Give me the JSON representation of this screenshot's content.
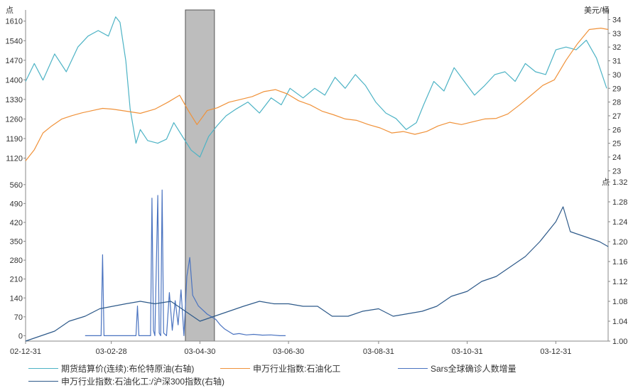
{
  "chart_data": [
    {
      "type": "line",
      "panel": "top",
      "left_unit": "点",
      "right_unit": "美元/桶",
      "left_ylim": [
        1050,
        1650
      ],
      "left_ticks": [
        "1610",
        "1540",
        "1470",
        "1400",
        "1330",
        "1260",
        "1190",
        "1120"
      ],
      "right_ylim": [
        22.5,
        34.7
      ],
      "right_ticks": [
        "34",
        "33",
        "32",
        "31",
        "30",
        "29",
        "28",
        "27",
        "26",
        "25",
        "24",
        "23"
      ],
      "xlim": [
        "2002-12-31",
        "2004-02-05"
      ],
      "highlight_range": [
        "2003-04-20",
        "2003-05-10"
      ],
      "series": [
        {
          "name": "期货结算价(连续):布伦特原油(右轴)",
          "color": "#4db3c5",
          "axis": "right",
          "x": [
            "2002-12-31",
            "2003-01-06",
            "2003-01-12",
            "2003-01-20",
            "2003-01-28",
            "2003-02-05",
            "2003-02-12",
            "2003-02-19",
            "2003-02-26",
            "2003-03-03",
            "2003-03-06",
            "2003-03-10",
            "2003-03-13",
            "2003-03-17",
            "2003-03-20",
            "2003-03-25",
            "2003-04-01",
            "2003-04-07",
            "2003-04-12",
            "2003-04-18",
            "2003-04-24",
            "2003-04-30",
            "2003-05-06",
            "2003-05-12",
            "2003-05-18",
            "2003-05-25",
            "2003-06-02",
            "2003-06-10",
            "2003-06-18",
            "2003-06-25",
            "2003-07-01",
            "2003-07-10",
            "2003-07-18",
            "2003-07-25",
            "2003-08-01",
            "2003-08-08",
            "2003-08-15",
            "2003-08-22",
            "2003-08-29",
            "2003-09-05",
            "2003-09-12",
            "2003-09-19",
            "2003-09-26",
            "2003-10-01",
            "2003-10-08",
            "2003-10-15",
            "2003-10-22",
            "2003-10-29",
            "2003-11-05",
            "2003-11-12",
            "2003-11-19",
            "2003-11-26",
            "2003-12-03",
            "2003-12-10",
            "2003-12-17",
            "2003-12-24",
            "2003-12-31",
            "2004-01-07",
            "2004-01-14",
            "2004-01-21",
            "2004-01-28",
            "2004-02-04"
          ],
          "values": [
            29.5,
            30.8,
            29.6,
            31.5,
            30.2,
            32.0,
            32.8,
            33.2,
            32.8,
            34.2,
            33.8,
            31.0,
            27.5,
            25.0,
            26.0,
            25.2,
            25.0,
            25.3,
            26.5,
            25.5,
            24.5,
            24.0,
            25.5,
            26.3,
            27.0,
            27.5,
            28.0,
            27.2,
            28.3,
            27.8,
            29.0,
            28.3,
            29.0,
            28.5,
            29.8,
            29.0,
            30.0,
            29.2,
            28.0,
            27.2,
            26.8,
            26.0,
            26.5,
            27.8,
            29.5,
            28.8,
            30.5,
            29.5,
            28.5,
            29.2,
            30.0,
            30.2,
            29.5,
            30.8,
            30.2,
            30.0,
            31.8,
            32.0,
            31.8,
            32.5,
            31.2,
            29.0
          ]
        },
        {
          "name": "申万行业指数:石油化工",
          "color": "#f0923a",
          "axis": "left",
          "x": [
            "2002-12-31",
            "2003-01-06",
            "2003-01-12",
            "2003-01-18",
            "2003-01-25",
            "2003-02-01",
            "2003-02-08",
            "2003-02-15",
            "2003-02-22",
            "2003-03-01",
            "2003-03-10",
            "2003-03-20",
            "2003-03-30",
            "2003-04-08",
            "2003-04-16",
            "2003-04-22",
            "2003-04-28",
            "2003-05-05",
            "2003-05-12",
            "2003-05-20",
            "2003-05-28",
            "2003-06-05",
            "2003-06-13",
            "2003-06-21",
            "2003-06-29",
            "2003-07-07",
            "2003-07-15",
            "2003-07-23",
            "2003-07-31",
            "2003-08-08",
            "2003-08-16",
            "2003-08-24",
            "2003-09-01",
            "2003-09-09",
            "2003-09-17",
            "2003-09-25",
            "2003-10-03",
            "2003-10-11",
            "2003-10-19",
            "2003-10-27",
            "2003-11-04",
            "2003-11-12",
            "2003-11-20",
            "2003-11-28",
            "2003-12-06",
            "2003-12-14",
            "2003-12-22",
            "2003-12-30",
            "2004-01-07",
            "2004-01-15",
            "2004-01-23",
            "2004-01-31",
            "2004-02-05"
          ],
          "values": [
            1110,
            1150,
            1210,
            1235,
            1260,
            1272,
            1282,
            1290,
            1298,
            1295,
            1288,
            1280,
            1295,
            1320,
            1345,
            1290,
            1240,
            1290,
            1300,
            1320,
            1330,
            1340,
            1358,
            1365,
            1350,
            1325,
            1310,
            1288,
            1275,
            1260,
            1255,
            1240,
            1228,
            1210,
            1215,
            1205,
            1215,
            1235,
            1248,
            1240,
            1250,
            1260,
            1262,
            1278,
            1310,
            1345,
            1380,
            1400,
            1470,
            1530,
            1580,
            1585,
            1580
          ]
        }
      ]
    },
    {
      "type": "line",
      "panel": "bottom",
      "left_unit": "",
      "right_unit": "点",
      "left_ylim": [
        -20,
        570
      ],
      "left_ticks": [
        "560",
        "490",
        "420",
        "350",
        "280",
        "210",
        "140",
        "70",
        "0"
      ],
      "right_ylim": [
        1.0,
        1.32
      ],
      "right_ticks": [
        "1.32",
        "1.28",
        "1.24",
        "1.20",
        "1.16",
        "1.12",
        "1.08",
        "1.04",
        "1.00"
      ],
      "x_tick_labels": [
        "02-12-31",
        "03-02-28",
        "03-04-30",
        "03-06-30",
        "03-08-31",
        "03-10-31",
        "03-12-31"
      ],
      "series": [
        {
          "name": "Sars全球确诊人数增量",
          "color": "#4a73c0",
          "axis": "left",
          "x": [
            "2003-02-10",
            "2003-02-20",
            "2003-02-21",
            "2003-02-22",
            "2003-02-23",
            "2003-02-24",
            "2003-03-17",
            "2003-03-18",
            "2003-03-19",
            "2003-03-20",
            "2003-03-21",
            "2003-03-26",
            "2003-03-27",
            "2003-03-28",
            "2003-03-29",
            "2003-03-30",
            "2003-04-01",
            "2003-04-02",
            "2003-04-03",
            "2003-04-04",
            "2003-04-05",
            "2003-04-07",
            "2003-04-09",
            "2003-04-11",
            "2003-04-13",
            "2003-04-15",
            "2003-04-17",
            "2003-04-19",
            "2003-04-21",
            "2003-04-23",
            "2003-04-25",
            "2003-04-27",
            "2003-04-29",
            "2003-05-02",
            "2003-05-05",
            "2003-05-08",
            "2003-05-11",
            "2003-05-14",
            "2003-05-17",
            "2003-05-20",
            "2003-05-23",
            "2003-05-27",
            "2003-06-01",
            "2003-06-06",
            "2003-06-12",
            "2003-06-18",
            "2003-06-24",
            "2003-06-28"
          ],
          "values": [
            0,
            0,
            0,
            300,
            0,
            0,
            0,
            110,
            0,
            0,
            0,
            0,
            0,
            510,
            20,
            0,
            520,
            10,
            0,
            540,
            10,
            0,
            160,
            20,
            130,
            40,
            170,
            0,
            220,
            290,
            150,
            130,
            110,
            95,
            80,
            70,
            60,
            40,
            25,
            15,
            5,
            8,
            3,
            5,
            2,
            3,
            0,
            0
          ]
        },
        {
          "name": "申万行业指数:石油化工:/沪深300指数(右轴)",
          "color": "#2e5a8a",
          "axis": "right",
          "x": [
            "2002-12-31",
            "2003-01-10",
            "2003-01-20",
            "2003-01-30",
            "2003-02-10",
            "2003-02-20",
            "2003-03-01",
            "2003-03-10",
            "2003-03-20",
            "2003-03-30",
            "2003-04-10",
            "2003-04-20",
            "2003-04-30",
            "2003-05-10",
            "2003-05-20",
            "2003-05-30",
            "2003-06-10",
            "2003-06-20",
            "2003-06-30",
            "2003-07-10",
            "2003-07-20",
            "2003-07-30",
            "2003-08-10",
            "2003-08-20",
            "2003-08-31",
            "2003-09-10",
            "2003-09-20",
            "2003-09-30",
            "2003-10-10",
            "2003-10-20",
            "2003-10-31",
            "2003-11-10",
            "2003-11-20",
            "2003-11-30",
            "2003-12-10",
            "2003-12-20",
            "2003-12-31",
            "2004-01-05",
            "2004-01-10",
            "2004-01-20",
            "2004-01-30",
            "2004-02-05"
          ],
          "values": [
            1.0,
            1.01,
            1.02,
            1.04,
            1.05,
            1.065,
            1.07,
            1.075,
            1.08,
            1.075,
            1.08,
            1.06,
            1.04,
            1.05,
            1.06,
            1.07,
            1.08,
            1.075,
            1.075,
            1.07,
            1.07,
            1.05,
            1.05,
            1.06,
            1.065,
            1.05,
            1.055,
            1.06,
            1.07,
            1.09,
            1.1,
            1.12,
            1.13,
            1.15,
            1.17,
            1.2,
            1.24,
            1.27,
            1.22,
            1.21,
            1.2,
            1.19
          ]
        }
      ]
    }
  ],
  "legend": {
    "item1": "期货结算价(连续):布伦特原油(右轴)",
    "item2": "申万行业指数:石油化工",
    "item3": "Sars全球确诊人数增量",
    "item4": "申万行业指数:石油化工:/沪深300指数(右轴)"
  },
  "colors": {
    "brent": "#4db3c5",
    "sector": "#f0923a",
    "sars": "#4a73c0",
    "ratio": "#2e5a8a",
    "highlight": "#bdbdbd"
  }
}
